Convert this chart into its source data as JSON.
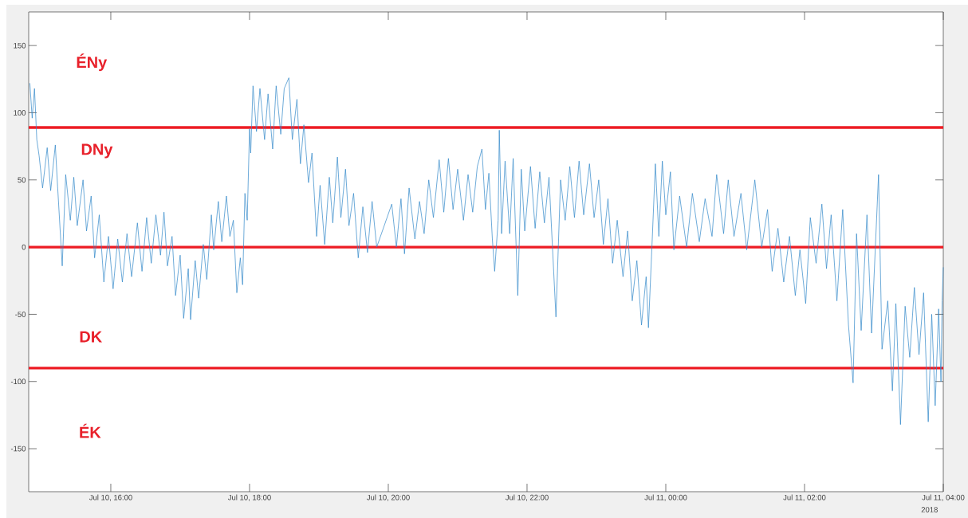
{
  "chart_data": {
    "type": "line",
    "color": "#2f86c9",
    "xlabel": "2018",
    "xlim": [
      "2018-07-10T14:49",
      "2018-07-11T04:00"
    ],
    "xticks": [
      {
        "value": "2018-07-10T16:00",
        "label": "Jul 10, 16:00"
      },
      {
        "value": "2018-07-10T18:00",
        "label": "Jul 10, 18:00"
      },
      {
        "value": "2018-07-10T20:00",
        "label": "Jul 10, 20:00"
      },
      {
        "value": "2018-07-10T22:00",
        "label": "Jul 10, 22:00"
      },
      {
        "value": "2018-07-11T00:00",
        "label": "Jul 11, 00:00"
      },
      {
        "value": "2018-07-11T02:00",
        "label": "Jul 11, 02:00"
      },
      {
        "value": "2018-07-11T04:00",
        "label": "Jul 11, 04:00"
      }
    ],
    "ylim": [
      -182,
      175
    ],
    "yticks": [
      -150,
      -100,
      -50,
      0,
      50,
      100,
      150
    ],
    "ref_lines": [
      {
        "axis": "y",
        "value": 89,
        "color": "#ed1c24"
      },
      {
        "axis": "y",
        "value": 0,
        "color": "#ed1c24"
      },
      {
        "axis": "y",
        "value": -90,
        "color": "#ed1c24"
      }
    ],
    "annotations": [
      "ÉNy",
      "DNy",
      "DK",
      "ÉK"
    ],
    "x": [
      "2018-07-10T14:50",
      "2018-07-10T14:52",
      "2018-07-10T14:54",
      "2018-07-10T14:56",
      "2018-07-10T14:58",
      "2018-07-10T15:01",
      "2018-07-10T15:05",
      "2018-07-10T15:08",
      "2018-07-10T15:12",
      "2018-07-10T15:14",
      "2018-07-10T15:18",
      "2018-07-10T15:21",
      "2018-07-10T15:25",
      "2018-07-10T15:28",
      "2018-07-10T15:31",
      "2018-07-10T15:36",
      "2018-07-10T15:39",
      "2018-07-10T15:43",
      "2018-07-10T15:46",
      "2018-07-10T15:50",
      "2018-07-10T15:54",
      "2018-07-10T15:58",
      "2018-07-10T16:02",
      "2018-07-10T16:06",
      "2018-07-10T16:10",
      "2018-07-10T16:14",
      "2018-07-10T16:18",
      "2018-07-10T16:23",
      "2018-07-10T16:27",
      "2018-07-10T16:31",
      "2018-07-10T16:35",
      "2018-07-10T16:39",
      "2018-07-10T16:43",
      "2018-07-10T16:46",
      "2018-07-10T16:49",
      "2018-07-10T16:53",
      "2018-07-10T16:56",
      "2018-07-10T17:00",
      "2018-07-10T17:03",
      "2018-07-10T17:07",
      "2018-07-10T17:09",
      "2018-07-10T17:13",
      "2018-07-10T17:16",
      "2018-07-10T17:20",
      "2018-07-10T17:23",
      "2018-07-10T17:27",
      "2018-07-10T17:29",
      "2018-07-10T17:33",
      "2018-07-10T17:36",
      "2018-07-10T17:40",
      "2018-07-10T17:43",
      "2018-07-10T17:46",
      "2018-07-10T17:49",
      "2018-07-10T17:52",
      "2018-07-10T17:54",
      "2018-07-10T17:56",
      "2018-07-10T17:58",
      "2018-07-10T18:00",
      "2018-07-10T18:01",
      "2018-07-10T18:03",
      "2018-07-10T18:06",
      "2018-07-10T18:09",
      "2018-07-10T18:13",
      "2018-07-10T18:16",
      "2018-07-10T18:20",
      "2018-07-10T18:23",
      "2018-07-10T18:27",
      "2018-07-10T18:30",
      "2018-07-10T18:34",
      "2018-07-10T18:37",
      "2018-07-10T18:41",
      "2018-07-10T18:44",
      "2018-07-10T18:47",
      "2018-07-10T18:51",
      "2018-07-10T18:54",
      "2018-07-10T18:58",
      "2018-07-10T19:01",
      "2018-07-10T19:05",
      "2018-07-10T19:09",
      "2018-07-10T19:12",
      "2018-07-10T19:16",
      "2018-07-10T19:19",
      "2018-07-10T19:23",
      "2018-07-10T19:26",
      "2018-07-10T19:30",
      "2018-07-10T19:34",
      "2018-07-10T19:38",
      "2018-07-10T19:42",
      "2018-07-10T19:46",
      "2018-07-10T19:50",
      "2018-07-10T20:03",
      "2018-07-10T20:07",
      "2018-07-10T20:11",
      "2018-07-10T20:14",
      "2018-07-10T20:18",
      "2018-07-10T20:23",
      "2018-07-10T20:27",
      "2018-07-10T20:31",
      "2018-07-10T20:35",
      "2018-07-10T20:39",
      "2018-07-10T20:44",
      "2018-07-10T20:48",
      "2018-07-10T20:52",
      "2018-07-10T20:56",
      "2018-07-10T21:00",
      "2018-07-10T21:05",
      "2018-07-10T21:09",
      "2018-07-10T21:13",
      "2018-07-10T21:17",
      "2018-07-10T21:21",
      "2018-07-10T21:24",
      "2018-07-10T21:27",
      "2018-07-10T21:30",
      "2018-07-10T21:32",
      "2018-07-10T21:35",
      "2018-07-10T21:36",
      "2018-07-10T21:38",
      "2018-07-10T21:41",
      "2018-07-10T21:45",
      "2018-07-10T21:48",
      "2018-07-10T21:52",
      "2018-07-10T21:55",
      "2018-07-10T21:58",
      "2018-07-10T22:03",
      "2018-07-10T22:07",
      "2018-07-10T22:11",
      "2018-07-10T22:15",
      "2018-07-10T22:19",
      "2018-07-10T22:25",
      "2018-07-10T22:29",
      "2018-07-10T22:33",
      "2018-07-10T22:37",
      "2018-07-10T22:41",
      "2018-07-10T22:45",
      "2018-07-10T22:49",
      "2018-07-10T22:54",
      "2018-07-10T22:58",
      "2018-07-10T23:02",
      "2018-07-10T23:06",
      "2018-07-10T23:10",
      "2018-07-10T23:14",
      "2018-07-10T23:18",
      "2018-07-10T23:23",
      "2018-07-10T23:27",
      "2018-07-10T23:31",
      "2018-07-10T23:35",
      "2018-07-10T23:39",
      "2018-07-10T23:43",
      "2018-07-10T23:45",
      "2018-07-10T23:48",
      "2018-07-10T23:51",
      "2018-07-10T23:54",
      "2018-07-10T23:57",
      "2018-07-11T00:00",
      "2018-07-11T00:04",
      "2018-07-11T00:07",
      "2018-07-11T00:12",
      "2018-07-11T00:18",
      "2018-07-11T00:23",
      "2018-07-11T00:29",
      "2018-07-11T00:34",
      "2018-07-11T00:40",
      "2018-07-11T00:44",
      "2018-07-11T00:50",
      "2018-07-11T00:54",
      "2018-07-11T00:59",
      "2018-07-11T01:05",
      "2018-07-11T01:10",
      "2018-07-11T01:17",
      "2018-07-11T01:23",
      "2018-07-11T01:28",
      "2018-07-11T01:32",
      "2018-07-11T01:37",
      "2018-07-11T01:42",
      "2018-07-11T01:47",
      "2018-07-11T01:52",
      "2018-07-11T01:56",
      "2018-07-11T02:01",
      "2018-07-11T02:05",
      "2018-07-11T02:10",
      "2018-07-11T02:15",
      "2018-07-11T02:19",
      "2018-07-11T02:23",
      "2018-07-11T02:28",
      "2018-07-11T02:33",
      "2018-07-11T02:38",
      "2018-07-11T02:42",
      "2018-07-11T02:45",
      "2018-07-11T02:49",
      "2018-07-11T02:54",
      "2018-07-11T02:58",
      "2018-07-11T03:04",
      "2018-07-11T03:07",
      "2018-07-11T03:12",
      "2018-07-11T03:16",
      "2018-07-11T03:19",
      "2018-07-11T03:23",
      "2018-07-11T03:27",
      "2018-07-11T03:31",
      "2018-07-11T03:35",
      "2018-07-11T03:39",
      "2018-07-11T03:43",
      "2018-07-11T03:47",
      "2018-07-11T03:50",
      "2018-07-11T03:53",
      "2018-07-11T03:56",
      "2018-07-11T03:58",
      "2018-07-11T03:59",
      "2018-07-11T04:00"
    ],
    "values": [
      122,
      96,
      118,
      80,
      68,
      44,
      74,
      42,
      76,
      45,
      -14,
      54,
      20,
      52,
      16,
      50,
      12,
      38,
      -8,
      24,
      -26,
      8,
      -31,
      6,
      -26,
      10,
      -22,
      18,
      -18,
      22,
      -12,
      24,
      -6,
      26,
      -14,
      8,
      -36,
      -6,
      -53,
      -16,
      -54,
      -10,
      -38,
      2,
      -24,
      24,
      -2,
      34,
      4,
      38,
      8,
      20,
      -34,
      -8,
      -28,
      40,
      20,
      88,
      70,
      120,
      86,
      118,
      80,
      114,
      73,
      120,
      84,
      118,
      126,
      80,
      110,
      62,
      91,
      48,
      70,
      8,
      46,
      2,
      52,
      18,
      67,
      22,
      58,
      16,
      40,
      -8,
      30,
      -4,
      34,
      0,
      32,
      0,
      36,
      -5,
      44,
      6,
      34,
      10,
      50,
      22,
      65,
      26,
      66,
      28,
      58,
      20,
      54,
      26,
      60,
      73,
      28,
      55,
      6,
      -18,
      20,
      87,
      10,
      64,
      10,
      66,
      -36,
      58,
      12,
      60,
      14,
      56,
      18,
      52,
      -52,
      50,
      20,
      60,
      22,
      64,
      24,
      62,
      22,
      50,
      2,
      36,
      -12,
      20,
      -22,
      12,
      -40,
      -10,
      -58,
      -22,
      -60,
      0,
      62,
      8,
      64,
      24,
      56,
      -2,
      38,
      0,
      40,
      4,
      36,
      8,
      54,
      10,
      50,
      8,
      40,
      -2,
      50,
      0,
      28,
      -18,
      14,
      -26,
      8,
      -36,
      -2,
      -42,
      22,
      -12,
      32,
      -16,
      24,
      -40,
      28,
      -58,
      -101,
      10,
      -62,
      24,
      -64,
      54,
      -76,
      -40,
      -107,
      -42,
      -132,
      -44,
      -82,
      -30,
      -80,
      -34,
      -130,
      -50,
      -118,
      -46,
      -100,
      -40,
      -15
    ]
  }
}
